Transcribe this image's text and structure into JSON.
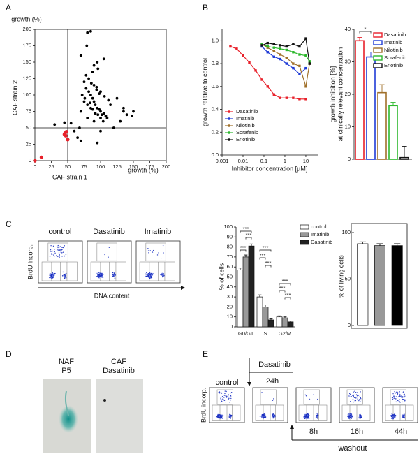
{
  "panel_labels": [
    "A",
    "B",
    "C",
    "D",
    "E"
  ],
  "chart_data": [
    {
      "type": "scatter",
      "xlabel": "CAF strain 1",
      "xlabel_unit": "growth (%)",
      "ylabel": "CAF strain 2",
      "ylabel_unit": "growth (%)",
      "xlim": [
        0,
        200
      ],
      "ylim": [
        0,
        200
      ],
      "xticks": [
        0,
        25,
        50,
        75,
        100,
        125,
        150,
        175,
        200
      ],
      "yticks": [
        0,
        25,
        50,
        75,
        100,
        125,
        150,
        175,
        200
      ],
      "vlines": [
        50
      ],
      "hlines": [
        50
      ],
      "series": [
        {
          "color": "#000000",
          "x": [
            80,
            85,
            79,
            70,
            95,
            105,
            90,
            135,
            140,
            148,
            150,
            135,
            130,
            100,
            95,
            120,
            68,
            55,
            60,
            65,
            70,
            30,
            45,
            75,
            78,
            82,
            85,
            88,
            90,
            92,
            95,
            98,
            100,
            102,
            105,
            108,
            110,
            75,
            80,
            85,
            88,
            92,
            96,
            100,
            104,
            72,
            76,
            84,
            90,
            94,
            98,
            106,
            112,
            78,
            82,
            86,
            94,
            100,
            115,
            125,
            88,
            96,
            70,
            80,
            90
          ],
          "values": [
            195,
            197,
            175,
            160,
            150,
            155,
            145,
            75,
            70,
            68,
            75,
            80,
            60,
            45,
            27,
            50,
            50,
            57,
            45,
            35,
            30,
            55,
            58,
            120,
            110,
            105,
            100,
            95,
            90,
            85,
            80,
            78,
            75,
            70,
            72,
            68,
            65,
            90,
            85,
            80,
            78,
            72,
            70,
            65,
            60,
            100,
            95,
            88,
            115,
            108,
            102,
            98,
            92,
            130,
            125,
            118,
            112,
            105,
            85,
            95,
            135,
            140,
            75,
            65,
            60
          ]
        },
        {
          "color": "#e8202a",
          "x": [
            0,
            10,
            45,
            46,
            47,
            50,
            48
          ],
          "values": [
            0,
            5,
            40,
            42,
            38,
            32,
            44
          ]
        }
      ]
    },
    {
      "type": "line",
      "xscale": "log",
      "xlabel": "Inhibitor concentration [µM]",
      "ylabel": "growth relative to control",
      "xlim": [
        0.001,
        37
      ],
      "ylim": [
        0,
        1.1
      ],
      "xticks": [
        0.001,
        0.01,
        0.1,
        1,
        10
      ],
      "yticks": [
        {
          "value": 0,
          "label": "0.0"
        },
        0.2,
        0.4,
        0.6,
        0.8,
        {
          "value": 1,
          "label": "1.0"
        }
      ],
      "legend": "lower left",
      "series": [
        {
          "name": "Dasatinib",
          "color": "#e8202a",
          "x": [
            0.0025,
            0.005,
            0.01,
            0.02,
            0.04,
            0.08,
            0.15,
            0.3,
            0.6,
            1.2,
            2.5,
            5,
            10
          ],
          "values": [
            0.95,
            0.93,
            0.87,
            0.81,
            0.74,
            0.66,
            0.6,
            0.53,
            0.5,
            0.5,
            0.5,
            0.49,
            0.49
          ]
        },
        {
          "name": "Imatinib",
          "color": "#1f3bd6",
          "x": [
            0.08,
            0.15,
            0.3,
            0.6,
            1.2,
            2.5,
            5,
            10
          ],
          "values": [
            0.95,
            0.9,
            0.86,
            0.84,
            0.8,
            0.76,
            0.71,
            0.76
          ]
        },
        {
          "name": "Nilotinib",
          "color": "#a0702a",
          "x": [
            0.08,
            0.15,
            0.3,
            0.6,
            1.2,
            2.5,
            5,
            10,
            15
          ],
          "values": [
            0.97,
            0.94,
            0.91,
            0.88,
            0.85,
            0.8,
            0.78,
            0.6,
            0.8
          ]
        },
        {
          "name": "Sorafenib",
          "color": "#2db82d",
          "x": [
            0.08,
            0.15,
            0.3,
            0.6,
            1.2,
            2.5,
            5,
            10,
            15
          ],
          "values": [
            0.97,
            0.95,
            0.94,
            0.93,
            0.92,
            0.9,
            0.88,
            0.87,
            0.82
          ]
        },
        {
          "name": "Erlotinib",
          "color": "#111111",
          "x": [
            0.08,
            0.15,
            0.3,
            0.6,
            1.2,
            2.5,
            5,
            10,
            15
          ],
          "values": [
            0.96,
            0.98,
            0.97,
            0.96,
            0.95,
            0.97,
            0.95,
            1.02,
            0.8
          ]
        }
      ]
    },
    {
      "type": "bar",
      "bar_style": "outline",
      "ylabel": [
        "growth inhibition [%]",
        "at clinically relevant concentration"
      ],
      "ylim": [
        0,
        40
      ],
      "yticks": [
        0,
        10,
        20,
        30,
        40
      ],
      "legend": "upper right",
      "annotations": [
        "*"
      ],
      "series": [
        {
          "name": "Dasatinib",
          "color": "#e8202a",
          "values": [
            36.5
          ],
          "errors": [
            1
          ]
        },
        {
          "name": "Imatinib",
          "color": "#1f3bd6",
          "values": [
            31.5
          ],
          "errors": [
            1.5
          ]
        },
        {
          "name": "Nilotinib",
          "color": "#a0702a",
          "values": [
            20.5
          ],
          "errors": [
            2.5
          ]
        },
        {
          "name": "Sorafenib",
          "color": "#2db82d",
          "values": [
            16.5
          ],
          "errors": [
            1
          ]
        },
        {
          "name": "Erlotinib",
          "color": "#111111",
          "values": [
            0.5
          ],
          "errors": [
            3.5
          ]
        }
      ]
    },
    {
      "type": "bar",
      "bar_style": "filled",
      "ylabel": "% of cells",
      "ylim": [
        0,
        100
      ],
      "yticks": [
        0,
        10,
        20,
        30,
        40,
        50,
        60,
        70,
        80,
        90,
        100
      ],
      "legend": "outside right",
      "categories": [
        "G0/G1",
        "S",
        "G2/M"
      ],
      "annotations": [
        "***",
        "***",
        "***",
        "***",
        "***",
        "***",
        "***",
        "***",
        "***"
      ],
      "series": [
        {
          "name": "control",
          "color": "#ffffff",
          "values": [
            57,
            30,
            10
          ],
          "errors": [
            2,
            2,
            1
          ]
        },
        {
          "name": "Imatinib",
          "color": "#999999",
          "values": [
            70,
            20,
            9
          ],
          "errors": [
            2,
            2,
            1
          ]
        },
        {
          "name": "Dasatinib",
          "color": "#222222",
          "values": [
            81,
            7,
            5
          ],
          "errors": [
            2,
            1,
            1
          ]
        }
      ]
    },
    {
      "type": "bar",
      "bar_style": "filled",
      "ylabel": "% of living cells",
      "ylim": [
        0,
        100
      ],
      "yticks": [
        0,
        50,
        100
      ],
      "values": [
        88,
        86,
        86
      ],
      "errors": [
        2,
        2,
        2
      ],
      "colors": [
        "#ffffff",
        "#999999",
        "#000000"
      ]
    }
  ],
  "flow_c": {
    "titles": [
      "control",
      "Dasatinib",
      "Imatinib"
    ],
    "ylabel": "BrdU incorp.",
    "xlabel": "DNA content"
  },
  "panel_d": {
    "labels": [
      [
        "NAF",
        "P5"
      ],
      [
        "CAF",
        "Dasatinib"
      ]
    ]
  },
  "panel_e": {
    "control": "control",
    "treatment": "Dasatinib",
    "treatment_time": "24h",
    "washout_times": [
      "8h",
      "16h",
      "44h"
    ],
    "washout": "washout",
    "ylabel": "BrdU incorp."
  }
}
